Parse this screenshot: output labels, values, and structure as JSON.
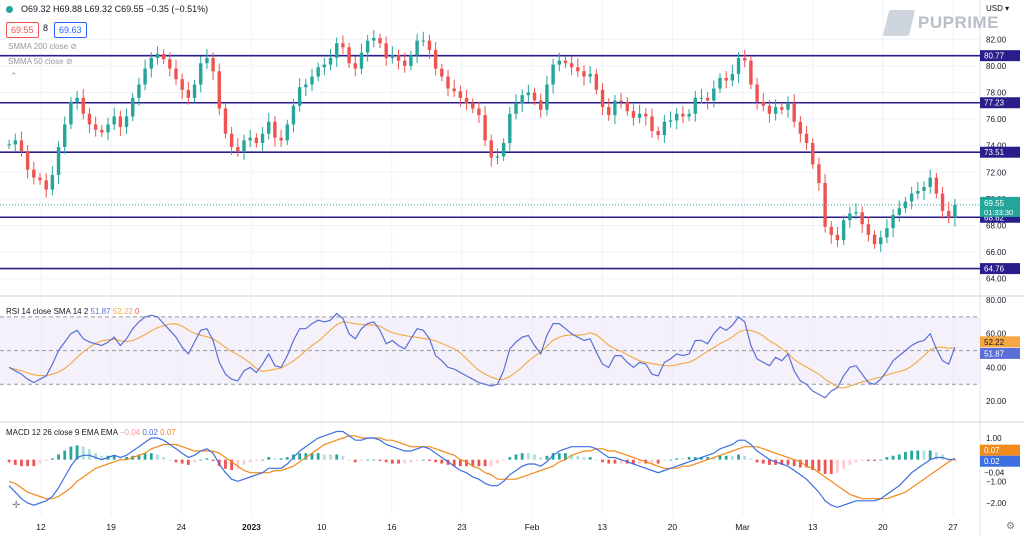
{
  "header": {
    "ohlc_text": "O69.32 H69.88 L69.32 C69.55 −0.35 (−0.51%)",
    "bid": "69.55",
    "spread": "8",
    "ask": "69.63",
    "smma200": "SMMA 200 close",
    "smma50": "SMMA 50 close",
    "currency": "USD"
  },
  "logo": {
    "text": "PUPRIME"
  },
  "colors": {
    "up": "#26a69a",
    "down": "#ef5350",
    "hline": "#2a1e8c",
    "rsi": "#5b6fd6",
    "rsi_ma": "#f4a742",
    "macd": "#3d6fe0",
    "signal": "#f08a1c"
  },
  "chart_data": [
    {
      "type": "candlestick",
      "ylim": [
        63,
        83
      ],
      "yticks": [
        64,
        66,
        68,
        70,
        72,
        74,
        76,
        78,
        80,
        82
      ],
      "x_labels": [
        "12",
        "19",
        "24",
        "2023",
        "10",
        "16",
        "23",
        "Feb",
        "13",
        "20",
        "Mar",
        "13",
        "20",
        "27"
      ],
      "horizontal_levels": [
        80.77,
        77.23,
        73.51,
        68.62,
        64.76
      ],
      "last_price": 69.55,
      "countdown": "01:33:30",
      "price_series": [
        74.1,
        74.4,
        73.6,
        72.2,
        71.6,
        71.4,
        70.7,
        71.8,
        73.9,
        75.6,
        77.3,
        77.6,
        76.4,
        75.6,
        75.2,
        75.0,
        75.6,
        76.2,
        75.4,
        76.2,
        77.6,
        78.6,
        79.8,
        80.6,
        80.9,
        80.5,
        79.8,
        79.0,
        78.2,
        77.6,
        78.6,
        80.2,
        80.6,
        79.6,
        76.8,
        74.9,
        73.9,
        73.6,
        74.4,
        74.6,
        74.2,
        74.9,
        75.8,
        74.6,
        74.4,
        75.6,
        77.0,
        78.4,
        78.6,
        79.2,
        79.9,
        80.1,
        80.6,
        81.7,
        81.4,
        80.2,
        79.8,
        81.0,
        81.9,
        82.1,
        81.7,
        80.6,
        80.8,
        80.4,
        80.0,
        80.8,
        81.9,
        81.9,
        81.2,
        79.8,
        79.2,
        78.3,
        78.1,
        77.6,
        77.2,
        76.8,
        76.3,
        74.4,
        73.1,
        73.2,
        74.2,
        76.4,
        77.2,
        77.8,
        78.0,
        77.4,
        76.7,
        78.6,
        80.1,
        80.4,
        80.2,
        79.9,
        79.6,
        79.2,
        79.4,
        78.2,
        76.9,
        76.3,
        77.4,
        77.3,
        76.6,
        76.1,
        76.4,
        76.2,
        75.1,
        74.8,
        75.8,
        75.9,
        76.4,
        76.2,
        76.4,
        77.6,
        77.6,
        77.4,
        78.3,
        79.1,
        78.9,
        79.4,
        80.6,
        80.4,
        78.6,
        77.3,
        77.0,
        76.4,
        76.9,
        76.7,
        77.2,
        75.8,
        74.9,
        74.2,
        72.6,
        71.2,
        67.9,
        67.3,
        66.9,
        68.4,
        68.9,
        69.0,
        68.1,
        67.3,
        66.6,
        67.1,
        67.8,
        68.8,
        69.3,
        69.8,
        70.4,
        70.6,
        70.9,
        71.6,
        70.4,
        69.1,
        68.6,
        69.55
      ]
    },
    {
      "type": "line",
      "title": "RSI 14 close SMA 14 2",
      "ylim": [
        10,
        80
      ],
      "yticks": [
        20,
        40,
        60,
        80
      ],
      "bands": [
        70,
        50,
        30
      ],
      "series": [
        {
          "name": "RSI",
          "last": 51.87
        },
        {
          "name": "SMA",
          "last": 52.22
        }
      ],
      "legend_values": [
        "51.87",
        "52.22",
        "0"
      ],
      "rsi_series": [
        40,
        38,
        36,
        33,
        31,
        33,
        35,
        42,
        50,
        55,
        60,
        62,
        57,
        55,
        54,
        53,
        55,
        58,
        53,
        57,
        63,
        67,
        70,
        71,
        70,
        66,
        62,
        58,
        52,
        48,
        55,
        62,
        63,
        56,
        43,
        36,
        33,
        32,
        38,
        40,
        37,
        42,
        48,
        41,
        40,
        47,
        56,
        63,
        63,
        66,
        68,
        67,
        68,
        72,
        69,
        60,
        57,
        63,
        66,
        67,
        62,
        54,
        56,
        53,
        51,
        57,
        63,
        62,
        57,
        47,
        44,
        40,
        39,
        37,
        35,
        33,
        31,
        30,
        29,
        30,
        38,
        51,
        55,
        58,
        59,
        53,
        48,
        59,
        66,
        66,
        63,
        60,
        58,
        56,
        57,
        49,
        42,
        40,
        47,
        47,
        43,
        40,
        43,
        42,
        36,
        35,
        43,
        45,
        48,
        47,
        48,
        56,
        56,
        54,
        60,
        64,
        62,
        65,
        70,
        67,
        53,
        45,
        43,
        41,
        46,
        44,
        48,
        38,
        32,
        30,
        26,
        24,
        22,
        26,
        28,
        35,
        40,
        41,
        36,
        31,
        30,
        33,
        38,
        44,
        47,
        50,
        53,
        55,
        56,
        60,
        51,
        44,
        42,
        51.87
      ]
    },
    {
      "type": "line",
      "title": "MACD 12 26 close 9 EMA EMA",
      "ylim": [
        -2.6,
        1.6
      ],
      "yticks": [
        1.0,
        0,
        -1.0,
        -2.0
      ],
      "series": [
        {
          "name": "Histogram",
          "last": -0.04
        },
        {
          "name": "MACD",
          "last": 0.02
        },
        {
          "name": "Signal",
          "last": 0.07
        }
      ],
      "legend_values": [
        "−0.04",
        "0.02",
        "0.07"
      ],
      "axis_labels": [
        "1.00",
        "0.07",
        "0.02",
        "−0.04",
        "−1.00",
        "−2.00"
      ],
      "macd_series": [
        -1.2,
        -1.5,
        -1.8,
        -2.0,
        -2.1,
        -2.0,
        -1.9,
        -1.7,
        -1.3,
        -0.8,
        -0.3,
        0.1,
        0.2,
        0.2,
        0.1,
        0.0,
        0.1,
        0.2,
        0.1,
        0.2,
        0.4,
        0.6,
        0.8,
        1.0,
        1.0,
        0.9,
        0.7,
        0.5,
        0.3,
        0.1,
        0.2,
        0.4,
        0.5,
        0.3,
        -0.2,
        -0.6,
        -0.9,
        -1.0,
        -0.9,
        -0.8,
        -0.7,
        -0.6,
        -0.4,
        -0.4,
        -0.4,
        -0.2,
        0.1,
        0.4,
        0.6,
        0.8,
        1.0,
        1.1,
        1.2,
        1.3,
        1.3,
        1.1,
        0.9,
        0.9,
        1.0,
        1.0,
        0.9,
        0.7,
        0.6,
        0.5,
        0.4,
        0.4,
        0.5,
        0.6,
        0.5,
        0.3,
        0.1,
        -0.1,
        -0.3,
        -0.5,
        -0.6,
        -0.8,
        -0.9,
        -1.1,
        -1.2,
        -1.2,
        -1.0,
        -0.7,
        -0.5,
        -0.3,
        -0.2,
        -0.2,
        -0.3,
        -0.1,
        0.2,
        0.4,
        0.5,
        0.6,
        0.6,
        0.6,
        0.6,
        0.5,
        0.3,
        0.1,
        0.1,
        0.0,
        -0.1,
        -0.2,
        -0.3,
        -0.4,
        -0.5,
        -0.6,
        -0.5,
        -0.4,
        -0.3,
        -0.2,
        -0.1,
        0.0,
        0.1,
        0.2,
        0.3,
        0.5,
        0.6,
        0.7,
        0.9,
        0.9,
        0.7,
        0.4,
        0.2,
        0.0,
        -0.1,
        -0.2,
        -0.3,
        -0.5,
        -0.7,
        -0.9,
        -1.2,
        -1.5,
        -1.9,
        -2.1,
        -2.2,
        -2.1,
        -2.0,
        -1.9,
        -1.9,
        -1.9,
        -1.9,
        -1.8,
        -1.6,
        -1.4,
        -1.2,
        -0.9,
        -0.6,
        -0.4,
        -0.2,
        0.0,
        0.1,
        0.1,
        0.0,
        0.02
      ],
      "signal_series": [
        -1.0,
        -1.1,
        -1.3,
        -1.5,
        -1.6,
        -1.7,
        -1.8,
        -1.8,
        -1.7,
        -1.5,
        -1.3,
        -1.0,
        -0.8,
        -0.6,
        -0.4,
        -0.3,
        -0.2,
        -0.1,
        0.0,
        0.0,
        0.1,
        0.2,
        0.3,
        0.5,
        0.6,
        0.7,
        0.7,
        0.7,
        0.6,
        0.5,
        0.4,
        0.4,
        0.4,
        0.4,
        0.3,
        0.1,
        -0.1,
        -0.3,
        -0.5,
        -0.6,
        -0.6,
        -0.6,
        -0.6,
        -0.5,
        -0.5,
        -0.4,
        -0.3,
        -0.1,
        0.1,
        0.3,
        0.5,
        0.7,
        0.8,
        0.9,
        1.0,
        1.1,
        1.1,
        1.0,
        1.0,
        1.0,
        1.0,
        0.9,
        0.9,
        0.8,
        0.7,
        0.6,
        0.6,
        0.6,
        0.6,
        0.5,
        0.4,
        0.3,
        0.2,
        0.0,
        -0.1,
        -0.3,
        -0.4,
        -0.6,
        -0.7,
        -0.9,
        -0.9,
        -0.9,
        -0.9,
        -0.8,
        -0.7,
        -0.6,
        -0.5,
        -0.4,
        -0.3,
        -0.1,
        0.0,
        0.2,
        0.3,
        0.4,
        0.4,
        0.5,
        0.5,
        0.4,
        0.4,
        0.3,
        0.2,
        0.1,
        0.0,
        -0.1,
        -0.2,
        -0.3,
        -0.4,
        -0.4,
        -0.4,
        -0.3,
        -0.3,
        -0.2,
        -0.1,
        0.0,
        0.1,
        0.2,
        0.3,
        0.4,
        0.5,
        0.6,
        0.6,
        0.6,
        0.5,
        0.4,
        0.3,
        0.2,
        0.1,
        0.0,
        -0.1,
        -0.3,
        -0.4,
        -0.6,
        -0.8,
        -1.0,
        -1.2,
        -1.4,
        -1.6,
        -1.7,
        -1.8,
        -1.8,
        -1.8,
        -1.8,
        -1.8,
        -1.7,
        -1.6,
        -1.5,
        -1.3,
        -1.1,
        -0.9,
        -0.7,
        -0.5,
        -0.3,
        -0.1,
        0.07
      ]
    }
  ]
}
